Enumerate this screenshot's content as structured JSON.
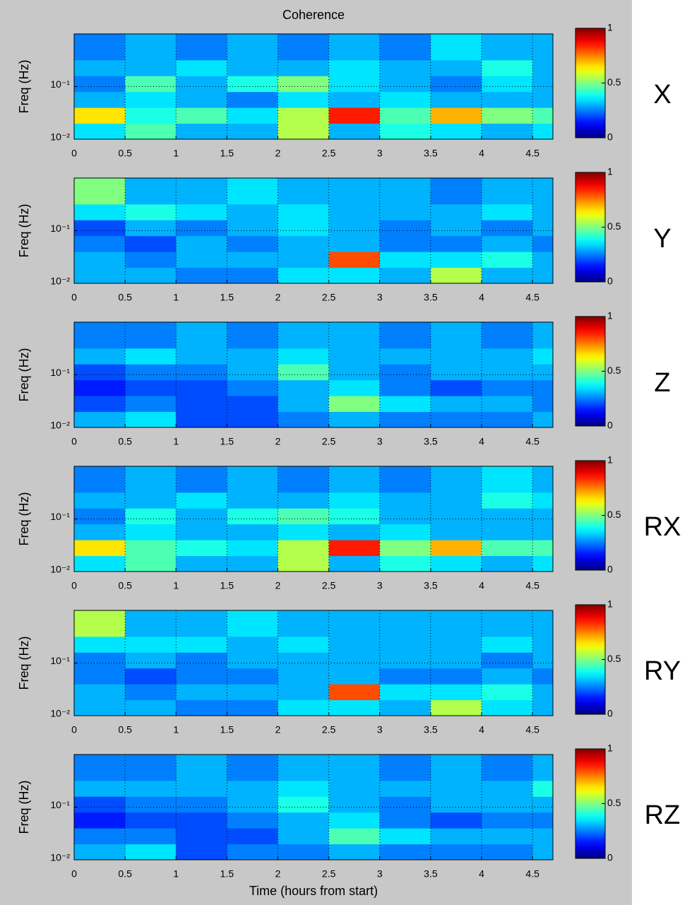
{
  "chart_data": [
    {
      "type": "heatmap",
      "title": "Coherence",
      "ylabel": "Freq (Hz)",
      "label": "X",
      "colormap": "jet",
      "yscale": "log",
      "grid": true,
      "xlim": [
        0,
        4.7
      ],
      "xticks": [
        0,
        0.5,
        1,
        1.5,
        2,
        2.5,
        3,
        3.5,
        4,
        4.5
      ],
      "ylim": [
        0.01,
        1
      ],
      "yticks": [
        {
          "value": 0.01,
          "label": "10⁻²"
        },
        {
          "value": 0.1,
          "label": "10⁻¹"
        }
      ],
      "clim": [
        0,
        1
      ],
      "cticks": [
        0,
        0.5,
        1
      ],
      "xbins": [
        0,
        0.5,
        1,
        1.5,
        2,
        2.5,
        3,
        3.5,
        4,
        4.5,
        4.7
      ],
      "ybins": [
        0.01,
        0.02,
        0.04,
        0.08,
        0.16,
        0.32,
        1
      ],
      "z": [
        [
          0.35,
          0.45,
          0.3,
          0.3,
          0.55,
          0.3,
          0.4,
          0.35,
          0.3,
          0.35
        ],
        [
          0.65,
          0.4,
          0.45,
          0.35,
          0.55,
          0.85,
          0.45,
          0.7,
          0.5,
          0.45
        ],
        [
          0.3,
          0.35,
          0.3,
          0.25,
          0.35,
          0.3,
          0.35,
          0.3,
          0.3,
          0.3
        ],
        [
          0.25,
          0.45,
          0.3,
          0.4,
          0.5,
          0.35,
          0.3,
          0.25,
          0.35,
          0.3
        ],
        [
          0.3,
          0.3,
          0.35,
          0.3,
          0.3,
          0.35,
          0.3,
          0.3,
          0.4,
          0.3
        ],
        [
          0.25,
          0.3,
          0.25,
          0.3,
          0.25,
          0.3,
          0.25,
          0.35,
          0.3,
          0.3
        ]
      ]
    },
    {
      "type": "heatmap",
      "ylabel": "Freq (Hz)",
      "label": "Y",
      "colormap": "jet",
      "yscale": "log",
      "grid": true,
      "xlim": [
        0,
        4.7
      ],
      "xticks": [
        0,
        0.5,
        1,
        1.5,
        2,
        2.5,
        3,
        3.5,
        4,
        4.5
      ],
      "ylim": [
        0.01,
        1
      ],
      "yticks": [
        {
          "value": 0.01,
          "label": "10⁻²"
        },
        {
          "value": 0.1,
          "label": "10⁻¹"
        }
      ],
      "clim": [
        0,
        1
      ],
      "cticks": [
        0,
        0.5,
        1
      ],
      "xbins": [
        0,
        0.5,
        1,
        1.5,
        2,
        2.5,
        3,
        3.5,
        4,
        4.5,
        4.7
      ],
      "ybins": [
        0.01,
        0.02,
        0.04,
        0.08,
        0.16,
        0.32,
        1
      ],
      "z": [
        [
          0.3,
          0.3,
          0.25,
          0.25,
          0.35,
          0.35,
          0.3,
          0.55,
          0.3,
          0.3
        ],
        [
          0.3,
          0.25,
          0.3,
          0.3,
          0.3,
          0.8,
          0.35,
          0.35,
          0.4,
          0.3
        ],
        [
          0.25,
          0.2,
          0.3,
          0.25,
          0.3,
          0.3,
          0.25,
          0.25,
          0.3,
          0.25
        ],
        [
          0.2,
          0.3,
          0.25,
          0.3,
          0.35,
          0.3,
          0.25,
          0.3,
          0.25,
          0.3
        ],
        [
          0.35,
          0.4,
          0.35,
          0.3,
          0.35,
          0.3,
          0.3,
          0.3,
          0.35,
          0.3
        ],
        [
          0.5,
          0.3,
          0.3,
          0.35,
          0.3,
          0.3,
          0.3,
          0.25,
          0.3,
          0.3
        ]
      ]
    },
    {
      "type": "heatmap",
      "ylabel": "Freq (Hz)",
      "label": "Z",
      "colormap": "jet",
      "yscale": "log",
      "grid": true,
      "xlim": [
        0,
        4.7
      ],
      "xticks": [
        0,
        0.5,
        1,
        1.5,
        2,
        2.5,
        3,
        3.5,
        4,
        4.5
      ],
      "ylim": [
        0.01,
        1
      ],
      "yticks": [
        {
          "value": 0.01,
          "label": "10⁻²"
        },
        {
          "value": 0.1,
          "label": "10⁻¹"
        }
      ],
      "clim": [
        0,
        1
      ],
      "cticks": [
        0,
        0.5,
        1
      ],
      "xbins": [
        0,
        0.5,
        1,
        1.5,
        2,
        2.5,
        3,
        3.5,
        4,
        4.5,
        4.7
      ],
      "ybins": [
        0.01,
        0.02,
        0.04,
        0.08,
        0.16,
        0.32,
        1
      ],
      "z": [
        [
          0.3,
          0.35,
          0.2,
          0.2,
          0.25,
          0.3,
          0.25,
          0.25,
          0.25,
          0.3
        ],
        [
          0.2,
          0.25,
          0.2,
          0.2,
          0.3,
          0.5,
          0.35,
          0.3,
          0.3,
          0.25
        ],
        [
          0.15,
          0.2,
          0.2,
          0.25,
          0.3,
          0.35,
          0.25,
          0.2,
          0.25,
          0.25
        ],
        [
          0.2,
          0.25,
          0.25,
          0.3,
          0.45,
          0.3,
          0.25,
          0.3,
          0.3,
          0.3
        ],
        [
          0.3,
          0.35,
          0.3,
          0.3,
          0.35,
          0.3,
          0.3,
          0.3,
          0.3,
          0.35
        ],
        [
          0.25,
          0.25,
          0.3,
          0.25,
          0.3,
          0.3,
          0.25,
          0.3,
          0.25,
          0.3
        ]
      ]
    },
    {
      "type": "heatmap",
      "ylabel": "Freq (Hz)",
      "label": "RX",
      "colormap": "jet",
      "yscale": "log",
      "grid": true,
      "xlim": [
        0,
        4.7
      ],
      "xticks": [
        0,
        0.5,
        1,
        1.5,
        2,
        2.5,
        3,
        3.5,
        4,
        4.5
      ],
      "ylim": [
        0.01,
        1
      ],
      "yticks": [
        {
          "value": 0.01,
          "label": "10⁻²"
        },
        {
          "value": 0.1,
          "label": "10⁻¹"
        }
      ],
      "clim": [
        0,
        1
      ],
      "cticks": [
        0,
        0.5,
        1
      ],
      "xbins": [
        0,
        0.5,
        1,
        1.5,
        2,
        2.5,
        3,
        3.5,
        4,
        4.5,
        4.7
      ],
      "ybins": [
        0.01,
        0.02,
        0.04,
        0.08,
        0.16,
        0.32,
        1
      ],
      "z": [
        [
          0.35,
          0.45,
          0.3,
          0.3,
          0.55,
          0.3,
          0.4,
          0.35,
          0.3,
          0.35
        ],
        [
          0.65,
          0.45,
          0.4,
          0.35,
          0.55,
          0.85,
          0.5,
          0.7,
          0.45,
          0.45
        ],
        [
          0.3,
          0.35,
          0.3,
          0.3,
          0.35,
          0.3,
          0.35,
          0.3,
          0.3,
          0.3
        ],
        [
          0.25,
          0.4,
          0.3,
          0.4,
          0.45,
          0.4,
          0.3,
          0.3,
          0.3,
          0.3
        ],
        [
          0.3,
          0.3,
          0.35,
          0.3,
          0.3,
          0.35,
          0.3,
          0.3,
          0.4,
          0.35
        ],
        [
          0.25,
          0.3,
          0.25,
          0.3,
          0.25,
          0.3,
          0.25,
          0.3,
          0.35,
          0.3
        ]
      ]
    },
    {
      "type": "heatmap",
      "ylabel": "Freq (Hz)",
      "label": "RY",
      "colormap": "jet",
      "yscale": "log",
      "grid": true,
      "xlim": [
        0,
        4.7
      ],
      "xticks": [
        0,
        0.5,
        1,
        1.5,
        2,
        2.5,
        3,
        3.5,
        4,
        4.5
      ],
      "ylim": [
        0.01,
        1
      ],
      "yticks": [
        {
          "value": 0.01,
          "label": "10⁻²"
        },
        {
          "value": 0.1,
          "label": "10⁻¹"
        }
      ],
      "clim": [
        0,
        1
      ],
      "cticks": [
        0,
        0.5,
        1
      ],
      "xbins": [
        0,
        0.5,
        1,
        1.5,
        2,
        2.5,
        3,
        3.5,
        4,
        4.5,
        4.7
      ],
      "ybins": [
        0.01,
        0.02,
        0.04,
        0.08,
        0.16,
        0.32,
        1
      ],
      "z": [
        [
          0.3,
          0.3,
          0.25,
          0.25,
          0.35,
          0.35,
          0.3,
          0.55,
          0.35,
          0.3
        ],
        [
          0.3,
          0.25,
          0.3,
          0.3,
          0.3,
          0.8,
          0.35,
          0.35,
          0.4,
          0.3
        ],
        [
          0.25,
          0.2,
          0.25,
          0.25,
          0.3,
          0.3,
          0.25,
          0.25,
          0.3,
          0.25
        ],
        [
          0.25,
          0.3,
          0.25,
          0.3,
          0.3,
          0.3,
          0.3,
          0.3,
          0.25,
          0.3
        ],
        [
          0.35,
          0.35,
          0.35,
          0.3,
          0.35,
          0.3,
          0.3,
          0.3,
          0.35,
          0.3
        ],
        [
          0.55,
          0.3,
          0.3,
          0.35,
          0.3,
          0.3,
          0.3,
          0.3,
          0.3,
          0.3
        ]
      ]
    },
    {
      "type": "heatmap",
      "ylabel": "Freq (Hz)",
      "xlabel": "Time (hours from start)",
      "label": "RZ",
      "colormap": "jet",
      "yscale": "log",
      "grid": true,
      "xlim": [
        0,
        4.7
      ],
      "xticks": [
        0,
        0.5,
        1,
        1.5,
        2,
        2.5,
        3,
        3.5,
        4,
        4.5
      ],
      "ylim": [
        0.01,
        1
      ],
      "yticks": [
        {
          "value": 0.01,
          "label": "10⁻²"
        },
        {
          "value": 0.1,
          "label": "10⁻¹"
        }
      ],
      "clim": [
        0,
        1
      ],
      "cticks": [
        0,
        0.5,
        1
      ],
      "xbins": [
        0,
        0.5,
        1,
        1.5,
        2,
        2.5,
        3,
        3.5,
        4,
        4.5,
        4.7
      ],
      "ybins": [
        0.01,
        0.02,
        0.04,
        0.08,
        0.16,
        0.32,
        1
      ],
      "z": [
        [
          0.3,
          0.35,
          0.2,
          0.25,
          0.25,
          0.3,
          0.25,
          0.25,
          0.25,
          0.3
        ],
        [
          0.25,
          0.25,
          0.2,
          0.2,
          0.3,
          0.45,
          0.35,
          0.3,
          0.3,
          0.3
        ],
        [
          0.15,
          0.2,
          0.2,
          0.25,
          0.3,
          0.35,
          0.25,
          0.2,
          0.25,
          0.25
        ],
        [
          0.2,
          0.25,
          0.25,
          0.3,
          0.4,
          0.3,
          0.25,
          0.3,
          0.3,
          0.3
        ],
        [
          0.3,
          0.3,
          0.3,
          0.3,
          0.35,
          0.3,
          0.3,
          0.3,
          0.3,
          0.4
        ],
        [
          0.25,
          0.25,
          0.3,
          0.25,
          0.3,
          0.3,
          0.25,
          0.3,
          0.25,
          0.3
        ]
      ]
    }
  ]
}
